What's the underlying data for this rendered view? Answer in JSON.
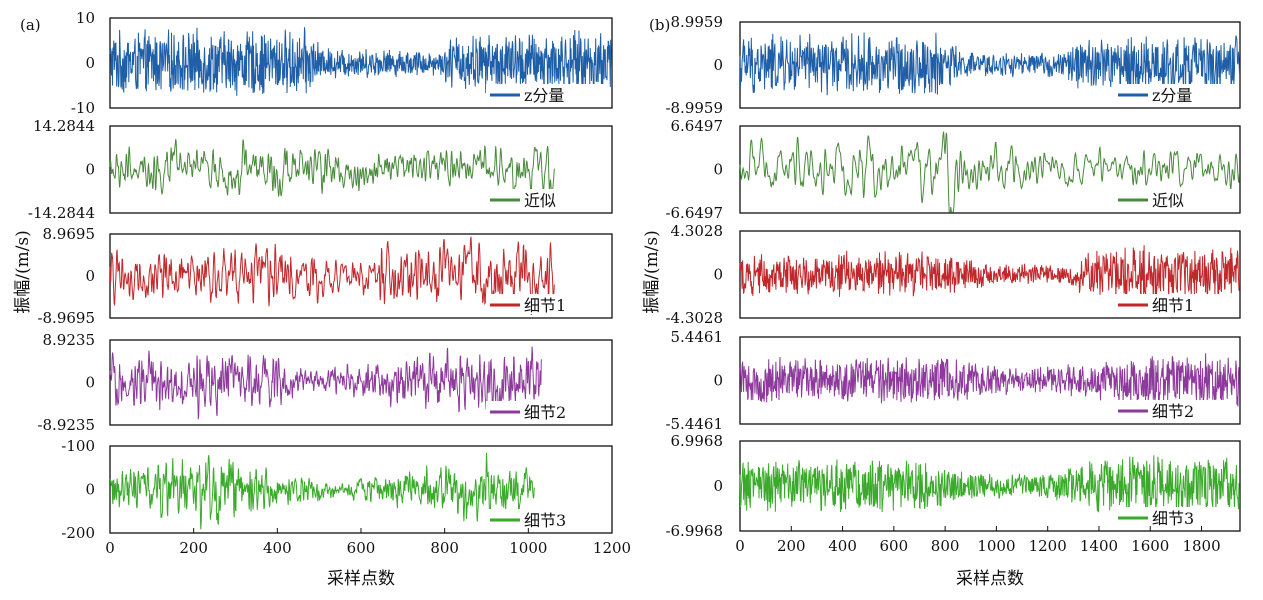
{
  "chart_data": [
    {
      "panel_label": "(a)",
      "type": "line",
      "xlabel": "采样点数",
      "ylabel": "振幅/(m/s)",
      "xlim": [
        0,
        1200
      ],
      "xticks": [
        "0",
        "200",
        "400",
        "600",
        "800",
        "1000",
        "1200"
      ],
      "subplots": [
        {
          "name": "z分量",
          "color": "#1f5fa8",
          "n": 1200,
          "amp": 0.85,
          "ytick_top": "10",
          "ytick_mid": "0",
          "ytick_bottom": "-10",
          "envelope": [
            [
              0,
              0.9
            ],
            [
              0.38,
              0.95
            ],
            [
              0.4,
              1.0
            ],
            [
              0.42,
              0.45
            ],
            [
              0.66,
              0.35
            ],
            [
              0.68,
              0.8
            ],
            [
              1,
              0.95
            ]
          ],
          "smooth": 0
        },
        {
          "name": "近似",
          "color": "#4a8a3c",
          "n": 1063,
          "amp": 0.5,
          "ytick_top": "14.2844",
          "ytick_mid": "0",
          "ytick_bottom": "-14.2844",
          "envelope": [
            [
              0,
              0.5
            ],
            [
              0.36,
              0.55
            ],
            [
              0.38,
              1.0
            ],
            [
              0.4,
              0.6
            ],
            [
              0.6,
              0.45
            ],
            [
              0.85,
              0.5
            ],
            [
              1,
              0.55
            ]
          ],
          "smooth": 3
        },
        {
          "name": "细节1",
          "color": "#c0282c",
          "n": 1063,
          "amp": 0.7,
          "ytick_top": "8.9695",
          "ytick_mid": "0",
          "ytick_bottom": "-8.9695",
          "envelope": [
            [
              0,
              0.7
            ],
            [
              0.4,
              0.8
            ],
            [
              0.5,
              0.45
            ],
            [
              0.58,
              0.4
            ],
            [
              0.62,
              0.9
            ],
            [
              1,
              0.85
            ]
          ],
          "smooth": 2
        },
        {
          "name": "细节2",
          "color": "#8e3a9c",
          "n": 1032,
          "amp": 0.8,
          "ytick_top": "8.9235",
          "ytick_mid": "0",
          "ytick_bottom": "-8.9235",
          "envelope": [
            [
              0,
              0.8
            ],
            [
              0.38,
              0.85
            ],
            [
              0.45,
              0.45
            ],
            [
              0.6,
              0.5
            ],
            [
              0.7,
              0.9
            ],
            [
              1,
              1.0
            ]
          ],
          "smooth": 1
        },
        {
          "name": "细节3",
          "color": "#3aaa2a",
          "n": 1016,
          "amp": 0.8,
          "ytick_top": "-100",
          "ytick_mid": "0",
          "ytick_bottom": "-200",
          "envelope": [
            [
              0,
              0.75
            ],
            [
              0.3,
              1.0
            ],
            [
              0.4,
              0.55
            ],
            [
              0.55,
              0.3
            ],
            [
              0.65,
              0.45
            ],
            [
              0.85,
              0.85
            ],
            [
              1,
              0.8
            ]
          ],
          "smooth": 1
        }
      ]
    },
    {
      "panel_label": "(b)",
      "type": "line",
      "xlabel": "采样点数",
      "ylabel": "振幅/(m/s)",
      "xlim": [
        0,
        1950
      ],
      "xticks": [
        "0",
        "200",
        "400",
        "600",
        "800",
        "1000",
        "1200",
        "1400",
        "1600",
        "1800"
      ],
      "subplots": [
        {
          "name": "z分量",
          "color": "#1f5fa8",
          "n": 1950,
          "amp": 0.85,
          "ytick_top": "8.9959",
          "ytick_mid": "0",
          "ytick_bottom": "-8.9959",
          "envelope": [
            [
              0,
              0.9
            ],
            [
              0.41,
              0.95
            ],
            [
              0.42,
              1.0
            ],
            [
              0.44,
              0.4
            ],
            [
              0.64,
              0.35
            ],
            [
              0.68,
              0.85
            ],
            [
              1,
              0.95
            ]
          ],
          "smooth": 0
        },
        {
          "name": "近似",
          "color": "#4a8a3c",
          "n": 1950,
          "amp": 0.45,
          "ytick_top": "6.6497",
          "ytick_mid": "0",
          "ytick_bottom": "-6.6497",
          "envelope": [
            [
              0,
              0.5
            ],
            [
              0.4,
              0.5
            ],
            [
              0.42,
              1.0
            ],
            [
              0.44,
              0.55
            ],
            [
              0.65,
              0.3
            ],
            [
              1,
              0.45
            ]
          ],
          "smooth": 4
        },
        {
          "name": "细节1",
          "color": "#c0282c",
          "n": 1950,
          "amp": 0.75,
          "ytick_top": "4.3028",
          "ytick_mid": "0",
          "ytick_bottom": "-4.3028",
          "envelope": [
            [
              0,
              0.75
            ],
            [
              0.42,
              0.75
            ],
            [
              0.5,
              0.4
            ],
            [
              0.65,
              0.3
            ],
            [
              0.7,
              0.9
            ],
            [
              1,
              0.95
            ]
          ],
          "smooth": 0
        },
        {
          "name": "细节2",
          "color": "#8e3a9c",
          "n": 1950,
          "amp": 0.75,
          "ytick_top": "5.4461",
          "ytick_mid": "0",
          "ytick_bottom": "-5.4461",
          "envelope": [
            [
              0,
              0.75
            ],
            [
              0.45,
              0.8
            ],
            [
              0.55,
              0.4
            ],
            [
              0.7,
              0.6
            ],
            [
              0.8,
              0.9
            ],
            [
              1,
              0.9
            ]
          ],
          "smooth": 0
        },
        {
          "name": "细节3",
          "color": "#3aaa2a",
          "n": 1950,
          "amp": 0.8,
          "ytick_top": "6.9968",
          "ytick_mid": "0",
          "ytick_bottom": "-6.9968",
          "envelope": [
            [
              0,
              0.8
            ],
            [
              0.35,
              0.85
            ],
            [
              0.45,
              0.4
            ],
            [
              0.6,
              0.35
            ],
            [
              0.75,
              0.95
            ],
            [
              1,
              0.9
            ]
          ],
          "smooth": 0
        }
      ]
    }
  ]
}
